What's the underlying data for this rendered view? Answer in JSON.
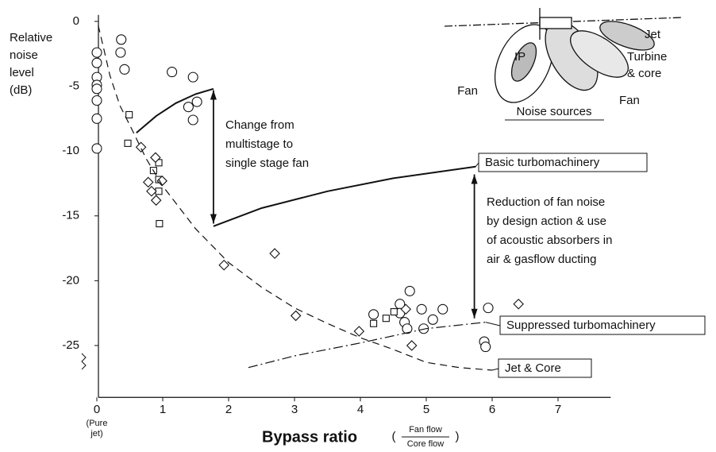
{
  "chart_data": {
    "type": "scatter",
    "x_label": "Bypass ratio",
    "x_label_fraction": {
      "numerator": "Fan flow",
      "denominator": "Core flow"
    },
    "x_note": [
      "(Pure",
      "jet)"
    ],
    "y_label": [
      "Relative",
      "noise",
      "level",
      "(dB)"
    ],
    "xlim": [
      -0.1,
      7.8
    ],
    "ylim": [
      -29,
      0.5
    ],
    "xticks": [
      0,
      1,
      2,
      3,
      4,
      5,
      6,
      7
    ],
    "yticks": [
      0,
      -5,
      -10,
      -15,
      -20,
      -25
    ],
    "color": "#111111",
    "series": [
      {
        "marker": "circle",
        "x": [
          0,
          0,
          0,
          0,
          0,
          0,
          0,
          0,
          0.37,
          0.36,
          0.42,
          1.14,
          1.46,
          1.39,
          1.52,
          1.46,
          4.75,
          4.6,
          4.93,
          5.25,
          5.94,
          4.2,
          4.6,
          4.67,
          4.71,
          4.96,
          5.1,
          5.88,
          5.9
        ],
        "values": [
          -2.4,
          -3.2,
          -4.3,
          -4.9,
          -5.2,
          -6.1,
          -7.5,
          -9.8,
          -1.4,
          -2.4,
          -3.7,
          -3.9,
          -4.3,
          -6.6,
          -6.2,
          -7.6,
          -20.8,
          -21.8,
          -22.2,
          -22.2,
          -22.1,
          -22.6,
          -22.5,
          -23.2,
          -23.7,
          -23.7,
          -23.0,
          -24.7,
          -25.1
        ]
      },
      {
        "marker": "square",
        "x": [
          0.49,
          0.47,
          0.86,
          0.94,
          0.94,
          0.94,
          0.95,
          4.2,
          4.39,
          4.51
        ],
        "values": [
          -7.2,
          -9.4,
          -11.5,
          -10.9,
          -12.2,
          -13.1,
          -15.6,
          -23.3,
          -22.9,
          -22.4
        ]
      },
      {
        "marker": "diamond",
        "x": [
          0.67,
          0.89,
          0.78,
          0.83,
          0.9,
          0.99,
          1.93,
          2.7,
          3.02,
          3.98,
          4.78,
          6.4,
          4.69
        ],
        "values": [
          -9.7,
          -10.5,
          -12.4,
          -13.1,
          -13.8,
          -12.3,
          -18.8,
          -17.9,
          -22.7,
          -23.9,
          -25.0,
          -21.8,
          -22.2
        ]
      },
      {
        "name": "Basic turbomachinery",
        "line": "solid",
        "x": [
          0.6,
          0.9,
          1.2,
          1.5,
          1.77,
          null,
          1.77,
          2.5,
          3.5,
          4.5,
          5.75
        ],
        "values": [
          -8.6,
          -7.3,
          -6.3,
          -5.6,
          -5.2,
          null,
          -15.8,
          -14.4,
          -13.1,
          -12.1,
          -11.2
        ]
      },
      {
        "name": "Suppressed turbomachinery",
        "line": "dashdot",
        "x": [
          2.3,
          3,
          4,
          5,
          5.9
        ],
        "values": [
          -26.7,
          -25.8,
          -24.8,
          -23.7,
          -23.2
        ]
      },
      {
        "name": "Jet & Core",
        "line": "dashed",
        "x": [
          0.02,
          0.1,
          0.2,
          0.35,
          0.5,
          0.75,
          1,
          1.5,
          2,
          2.5,
          3,
          3.5,
          4,
          4.5,
          5,
          5.5,
          6
        ],
        "values": [
          -0.3,
          -2,
          -4.2,
          -6.5,
          -8,
          -10.6,
          -12.7,
          -16,
          -18.6,
          -20.5,
          -22.1,
          -23.3,
          -24.4,
          -25.3,
          -26.3,
          -26.7,
          -26.9
        ]
      }
    ],
    "annotations": [
      {
        "text": [
          "Change from",
          "multistage to",
          "single stage fan"
        ],
        "x": 1.77,
        "from": -5.3,
        "to": -15.6
      },
      {
        "text": [
          "Reduction of fan noise",
          "by design action & use",
          "of acoustic absorbers in",
          "air & gasflow ducting"
        ],
        "x": 5.73,
        "from": -11.8,
        "to": -22.9
      }
    ],
    "inset": {
      "title": "Noise sources",
      "labels": [
        "Jet",
        "Turbine",
        "& core",
        "Fan",
        "Fan",
        "IP"
      ]
    }
  }
}
